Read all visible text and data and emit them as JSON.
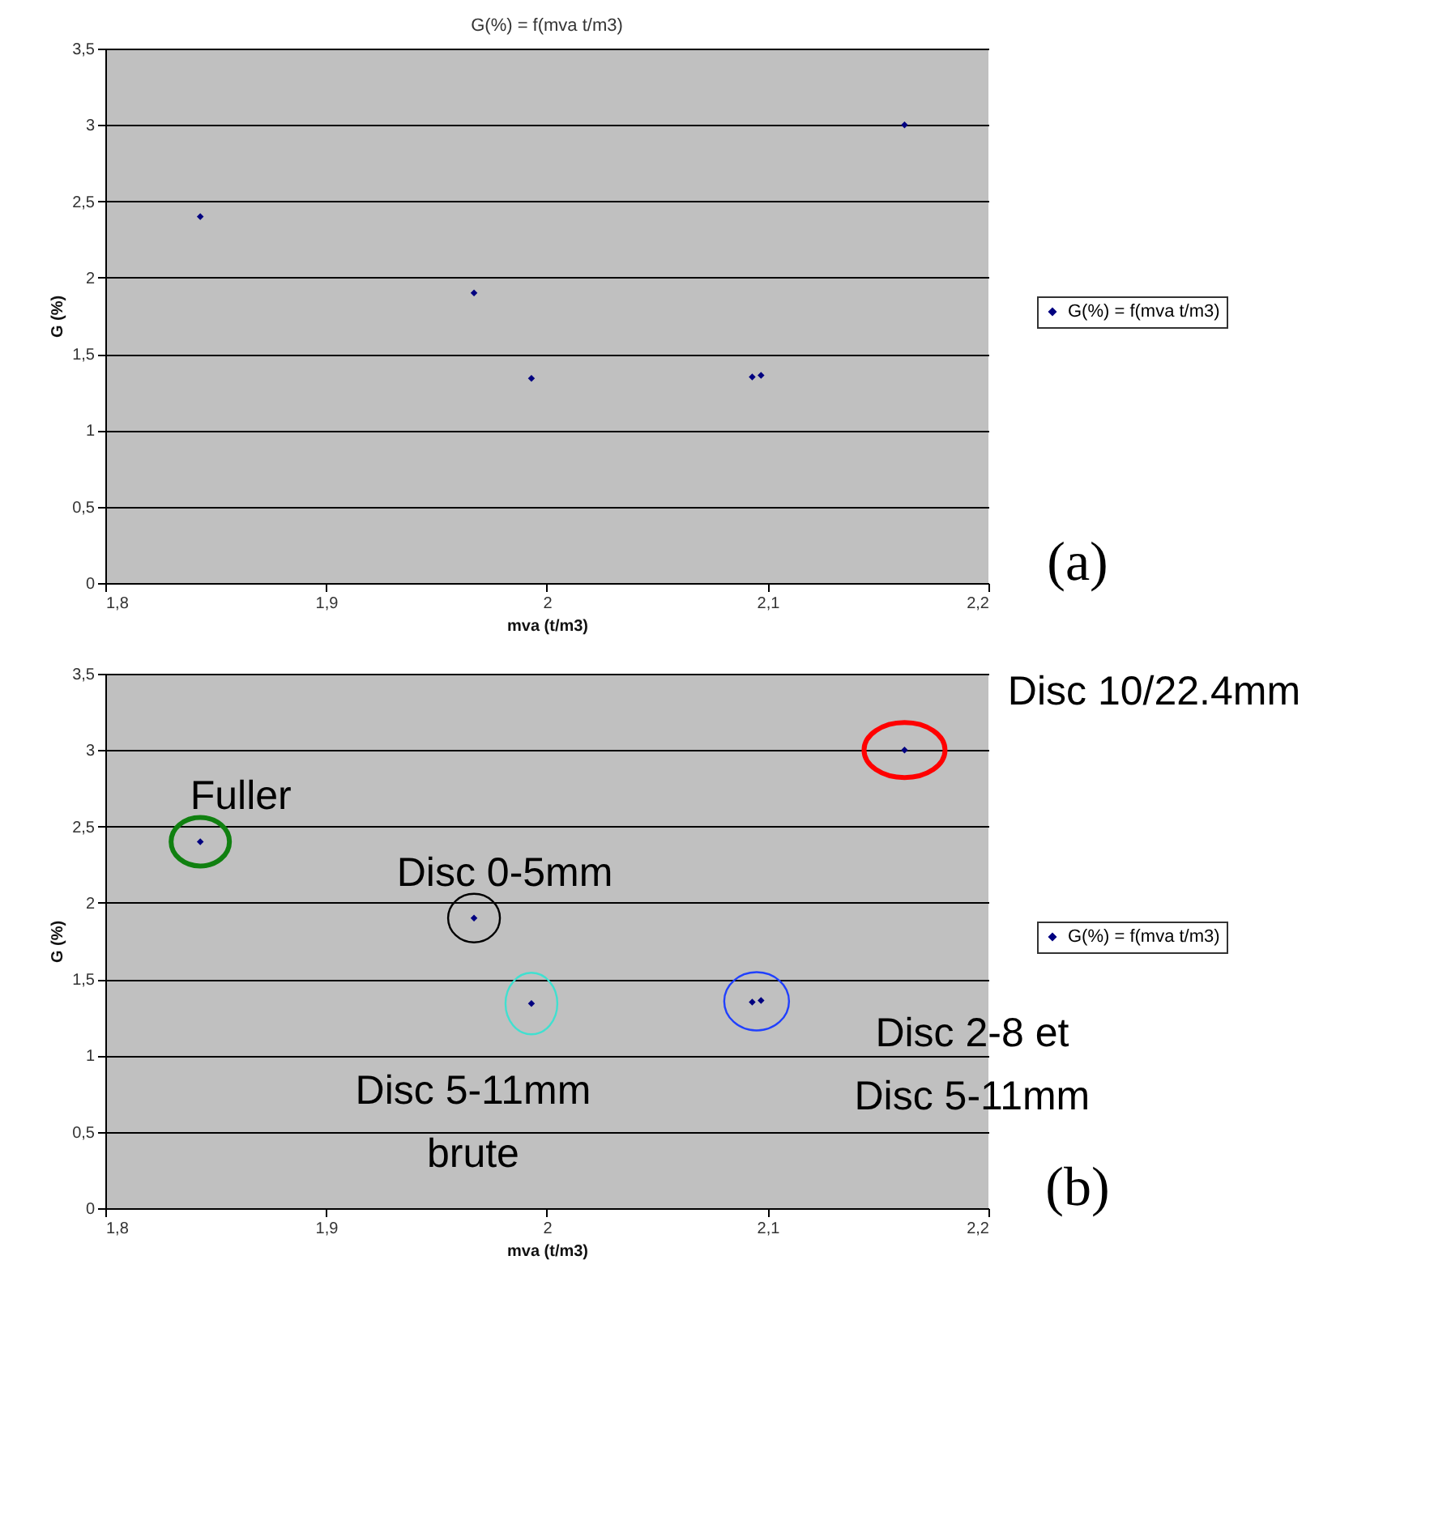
{
  "chart_data": [
    {
      "type": "scatter",
      "title": "G(%) = f(mva t/m3)",
      "xlabel": "mva (t/m3)",
      "ylabel": "G (%)",
      "series": [
        {
          "name": "G(%) = f(mva t/m3)",
          "color": "#000080",
          "x": [
            1.843,
            1.967,
            1.993,
            2.093,
            2.097,
            2.162
          ],
          "values": [
            2.4,
            1.9,
            1.34,
            1.35,
            1.36,
            3.0
          ]
        }
      ],
      "xlim": [
        1.8,
        2.2
      ],
      "xticks": [
        {
          "value": 1.8,
          "label": "1,8"
        },
        {
          "value": 1.9,
          "label": "1,9"
        },
        2,
        {
          "value": 2.1,
          "label": "2,1"
        },
        {
          "value": 2.2,
          "label": "2,2"
        }
      ],
      "ylim": [
        0,
        3.5
      ],
      "yticks": [
        0,
        {
          "value": 0.5,
          "label": "0,5"
        },
        1,
        {
          "value": 1.5,
          "label": "1,5"
        },
        2,
        {
          "value": 2.5,
          "label": "2,5"
        },
        3,
        {
          "value": 3.5,
          "label": "3,5"
        }
      ],
      "grid": "y",
      "legend": "right",
      "marker": "diamond",
      "annotations": [
        "(a)"
      ]
    },
    {
      "type": "scatter",
      "xlabel": "mva (t/m3)",
      "ylabel": "G (%)",
      "series": [
        {
          "name": "G(%) = f(mva t/m3)",
          "color": "#000080",
          "x": [
            1.843,
            1.967,
            1.993,
            2.093,
            2.097,
            2.162
          ],
          "values": [
            2.4,
            1.9,
            1.34,
            1.35,
            1.36,
            3.0
          ]
        }
      ],
      "xlim": [
        1.8,
        2.2
      ],
      "xticks": [
        {
          "value": 1.8,
          "label": "1,8"
        },
        {
          "value": 1.9,
          "label": "1,9"
        },
        2,
        {
          "value": 2.1,
          "label": "2,1"
        },
        {
          "value": 2.2,
          "label": "2,2"
        }
      ],
      "ylim": [
        0,
        3.5
      ],
      "yticks": [
        0,
        {
          "value": 0.5,
          "label": "0,5"
        },
        1,
        {
          "value": 1.5,
          "label": "1,5"
        },
        2,
        {
          "value": 2.5,
          "label": "2,5"
        },
        3,
        {
          "value": 3.5,
          "label": "3,5"
        }
      ],
      "grid": "y",
      "legend": "right",
      "marker": "diamond",
      "annotations": [
        {
          "text": "Fuller",
          "x": 1.843,
          "y": 2.4
        },
        {
          "text": "Disc 0-5mm",
          "x": 1.967,
          "y": 1.9
        },
        {
          "text": "Disc 5-11mm\nbrute",
          "x": 1.993,
          "y": 1.34
        },
        {
          "text": "Disc 2-8 et\nDisc 5-11mm",
          "x": 2.095,
          "y": 1.355
        },
        {
          "text": "Disc 10/22.4mm",
          "x": 2.162,
          "y": 3.0
        },
        "(b)"
      ]
    }
  ]
}
